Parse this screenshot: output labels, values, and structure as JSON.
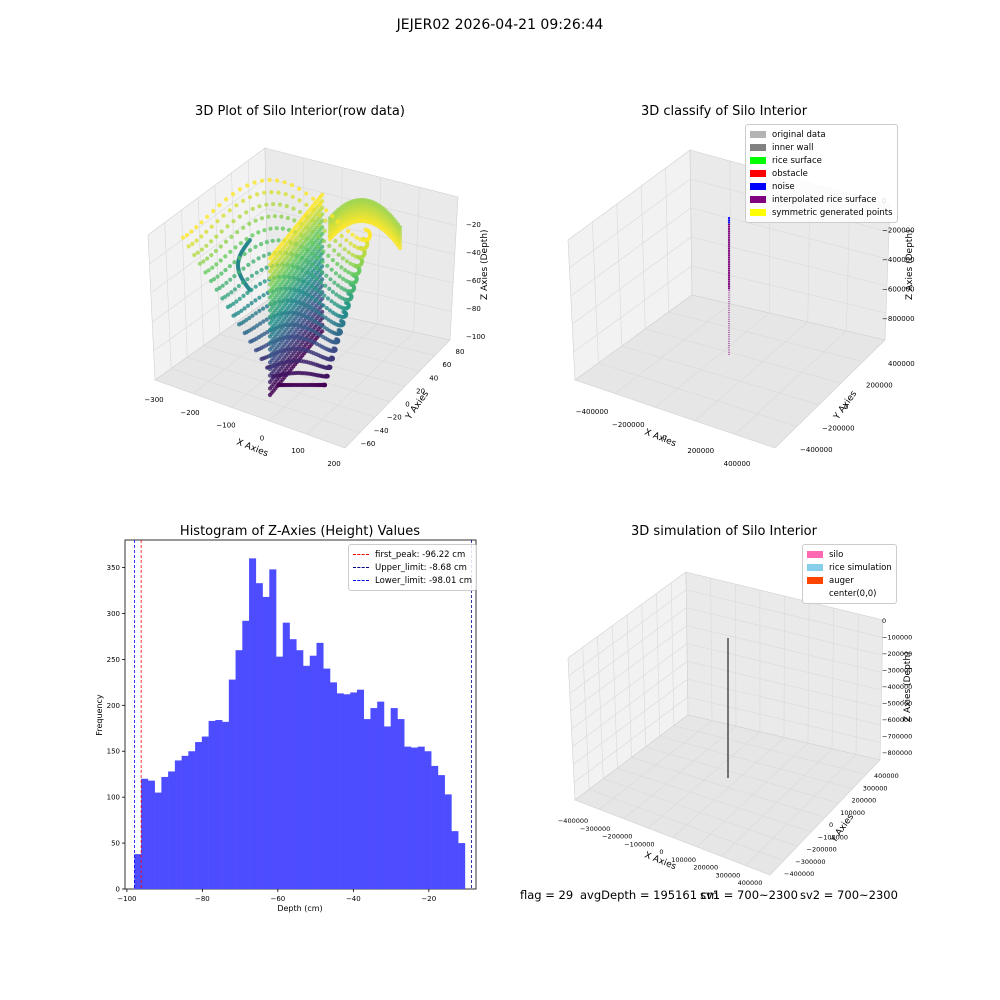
{
  "figure": {
    "suptitle": "JEJER02 2026-04-21 09:26:44"
  },
  "status": {
    "flag": "flag = 29",
    "avg_depth": "avgDepth = 195161 cm",
    "sv1": "sv1 = 700~2300",
    "sv2": "sv2 = 700~2300"
  },
  "chart_data": [
    {
      "type": "scatter",
      "projection": "3d",
      "title": "3D Plot of Silo Interior(row data)",
      "xlabel": "X Axies",
      "ylabel": "Y Axies",
      "zlabel": "Z Axies (Depth)",
      "xticks": [
        "−300",
        "−200",
        "−100",
        "0",
        "100",
        "200"
      ],
      "yticks": [
        "−60",
        "−40",
        "−20",
        "0",
        "20",
        "40",
        "60",
        "80"
      ],
      "zticks": [
        "−100",
        "−80",
        "−60",
        "−40",
        "−20"
      ],
      "xlim": [
        -300,
        200
      ],
      "ylim": [
        -60,
        80
      ],
      "zlim": [
        -100,
        -10
      ],
      "colormap": "viridis"
    },
    {
      "type": "scatter",
      "projection": "3d",
      "title": "3D classify of Silo Interior",
      "xlabel": "X Axies",
      "ylabel": "Y Axies",
      "zlabel": "Z Axies (Depth)",
      "xticks": [
        "−400000",
        "−200000",
        "0",
        "200000",
        "400000"
      ],
      "yticks": [
        "−400000",
        "−200000",
        "0",
        "200000",
        "400000"
      ],
      "zticks": [
        "0",
        "−200000",
        "−400000",
        "−600000",
        "−800000"
      ],
      "legend": [
        {
          "label": "original data",
          "color": "#b3b3b3"
        },
        {
          "label": "inner wall",
          "color": "#808080"
        },
        {
          "label": "rice surface",
          "color": "#00ff00"
        },
        {
          "label": "obstacle",
          "color": "#ff0000"
        },
        {
          "label": "noise",
          "color": "#0000ff"
        },
        {
          "label": "interpolated rice surface",
          "color": "#800080"
        },
        {
          "label": "symmetric generated points",
          "color": "#ffff00"
        }
      ],
      "legend_loc": "upper right"
    },
    {
      "type": "bar",
      "title": "Histogram of Z-Axies (Height) Values",
      "xlabel": "Depth (cm)",
      "ylabel": "Frequency",
      "xlim": [
        -100.5,
        -7.5
      ],
      "ylim": [
        0,
        380
      ],
      "xticks": [
        -100,
        -80,
        -60,
        -40,
        -20
      ],
      "yticks": [
        0,
        50,
        100,
        150,
        200,
        250,
        300,
        350
      ],
      "bin_start": -98.01,
      "bin_width": 1.787,
      "values": [
        38,
        120,
        118,
        105,
        122,
        128,
        140,
        145,
        150,
        160,
        166,
        183,
        184,
        182,
        228,
        260,
        292,
        360,
        333,
        318,
        348,
        253,
        290,
        272,
        260,
        243,
        254,
        268,
        240,
        225,
        213,
        212,
        214,
        217,
        185,
        197,
        204,
        177,
        197,
        185,
        155,
        154,
        155,
        150,
        134,
        124,
        103,
        63,
        50
      ],
      "bar_color": "#4d4dff",
      "vlines": [
        {
          "label": "first_peak: -96.22 cm",
          "x": -96.22,
          "color": "#ff0000"
        },
        {
          "label": "Upper_limit: -8.68 cm",
          "x": -8.68,
          "color": "#00008b"
        },
        {
          "label": "Lower_limit: -98.01 cm",
          "x": -98.01,
          "color": "#0000ff"
        }
      ],
      "legend_loc": "upper right"
    },
    {
      "type": "line",
      "projection": "3d",
      "title": "3D simulation of Silo Interior",
      "xlabel": "X Axies",
      "ylabel": "Y Axies",
      "zlabel": "Z Axies (Depth)",
      "xticks": [
        "−400000",
        "−300000",
        "−200000",
        "−100000",
        "0",
        "100000",
        "200000",
        "300000",
        "400000"
      ],
      "yticks": [
        "−400000",
        "−300000",
        "−200000",
        "−100000",
        "0",
        "100000",
        "200000",
        "300000",
        "400000"
      ],
      "zticks": [
        "0",
        "−100000",
        "−200000",
        "−300000",
        "−400000",
        "−500000",
        "−600000",
        "−700000",
        "−800000"
      ],
      "legend": [
        {
          "label": "silo",
          "color": "#ff69b4"
        },
        {
          "label": "rice simulation",
          "color": "#87ceeb"
        },
        {
          "label": "auger",
          "color": "#ff4500"
        },
        {
          "label": "center(0,0)",
          "color": ""
        }
      ],
      "legend_loc": "upper right"
    }
  ]
}
